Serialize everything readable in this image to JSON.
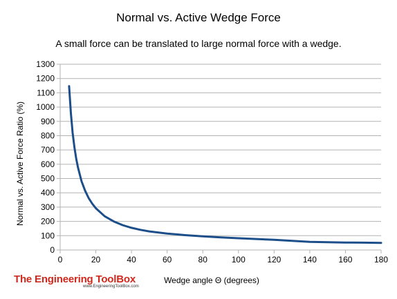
{
  "chart_data": {
    "type": "line",
    "title": "Normal vs. Active Wedge Force",
    "subtitle": "A small force can be translated to large normal force with a wedge.",
    "xlabel": "Wedge angle Θ (degrees)",
    "ylabel": "Normal vs. Active Force Ratio (%)",
    "xlim": [
      0,
      180
    ],
    "ylim": [
      0,
      1300
    ],
    "xticks": [
      0,
      20,
      40,
      60,
      80,
      100,
      120,
      140,
      160,
      180
    ],
    "yticks": [
      0,
      100,
      200,
      300,
      400,
      500,
      600,
      700,
      800,
      900,
      1000,
      1100,
      1200,
      1300
    ],
    "grid": "horizontal",
    "legend": "none",
    "line_color": "#1c4e8a",
    "series": [
      {
        "x": [
          5,
          6,
          7,
          8,
          9,
          10,
          12,
          14,
          16,
          18,
          20,
          25,
          30,
          35,
          40,
          45,
          50,
          60,
          70,
          80,
          90,
          100,
          110,
          120,
          130,
          140,
          150,
          160,
          170,
          180
        ],
        "y": [
          1147,
          957,
          820,
          719,
          639,
          576,
          481,
          414,
          363,
          324,
          292,
          236,
          200,
          174,
          155,
          141,
          130,
          115,
          104,
          95,
          88,
          82,
          77,
          71,
          64,
          57,
          54,
          52,
          51,
          50
        ]
      }
    ]
  },
  "logo": {
    "name": "The Engineering ToolBox",
    "url": "www.EngineeringToolBox.com"
  }
}
